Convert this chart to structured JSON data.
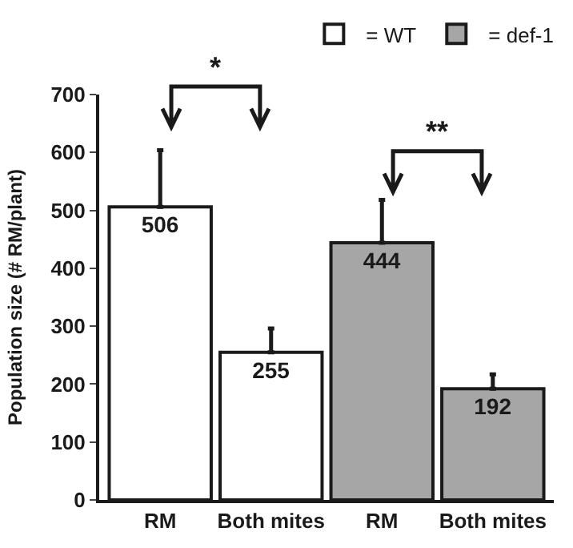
{
  "chart_data": {
    "type": "bar",
    "ylabel": "Population size (# RM/plant)",
    "categories": [
      "RM",
      "Both mites",
      "RM",
      "Both mites"
    ],
    "series": [
      {
        "name": "= WT",
        "color": "#ffffff",
        "values": [
          506,
          255,
          null,
          null
        ],
        "errors": [
          98,
          41,
          null,
          null
        ]
      },
      {
        "name": "= def-1",
        "color": "#a6a6a6",
        "values": [
          null,
          null,
          444,
          192
        ],
        "errors": [
          null,
          null,
          74,
          25
        ]
      }
    ],
    "ylim": [
      0,
      700
    ],
    "yticks": [
      0,
      100,
      200,
      300,
      400,
      500,
      600,
      700
    ],
    "legend": "top right",
    "data_labels": true,
    "annotations": [
      "*",
      "**"
    ]
  }
}
